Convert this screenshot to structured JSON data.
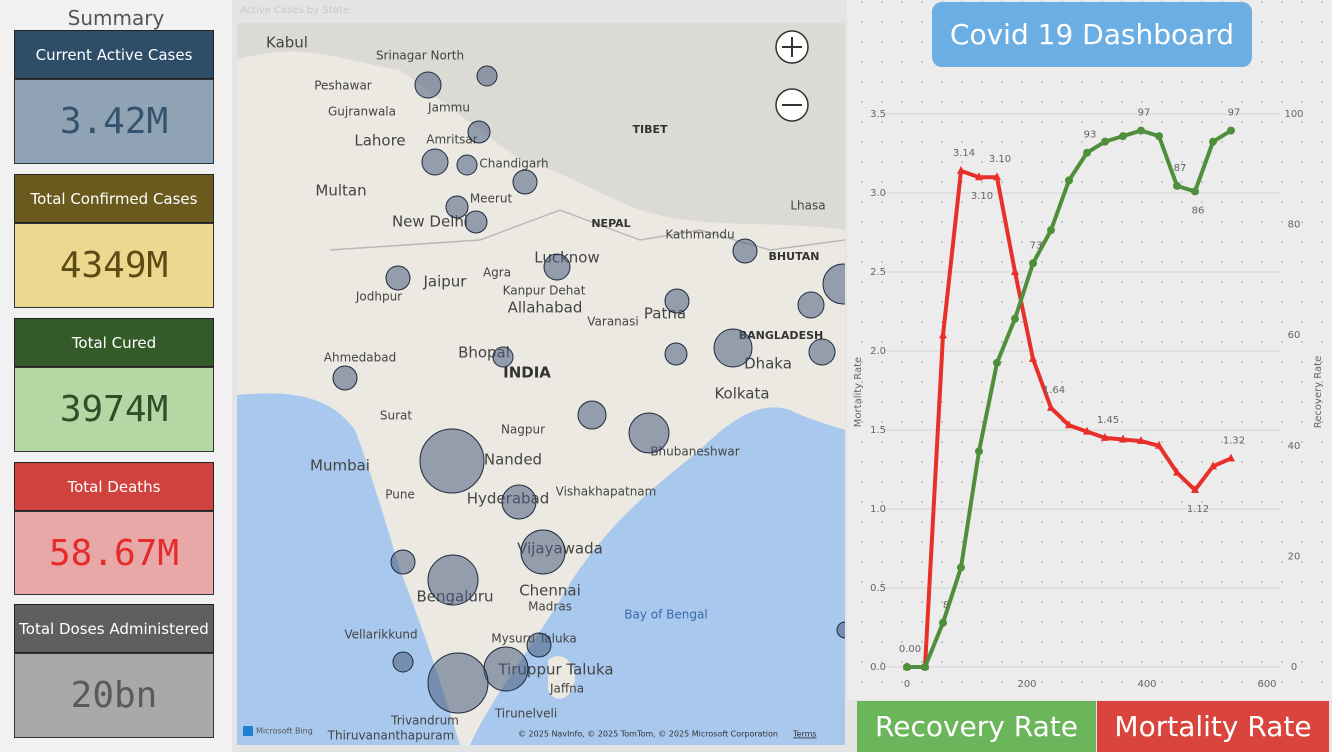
{
  "summary": {
    "title": "Summary",
    "cards": [
      {
        "label": "Current Active Cases",
        "value": "3.42M"
      },
      {
        "label": "Total Confirmed Cases",
        "value": "4349M"
      },
      {
        "label": "Total Cured",
        "value": "3974M"
      },
      {
        "label": "Total Deaths",
        "value": "58.67M"
      },
      {
        "label": "Total Doses Administered",
        "value": "20bn"
      }
    ]
  },
  "map": {
    "title": "Active Cases by State",
    "labels": [
      "Kabul",
      "Srinagar North",
      "Peshawar",
      "Gujranwala",
      "Lahore",
      "Multan",
      "Jammu",
      "Amritsar",
      "Chandigarh",
      "Meerut",
      "New Delhi",
      "Agra",
      "Jaipur",
      "Jodhpur",
      "Lucknow",
      "Kanpur Dehat",
      "Allahabad",
      "Varanasi",
      "Patna",
      "TIBET",
      "NEPAL",
      "Kathmandu",
      "Lhasa",
      "BHUTAN",
      "BANGLADESH",
      "Dhaka",
      "Kolkata",
      "Ahmedabad",
      "Bhopal",
      "INDIA",
      "Surat",
      "Nagpur",
      "Mumbai",
      "Pune",
      "Nanded",
      "Hyderabad",
      "Vishakhapatnam",
      "Bhubaneshwar",
      "Vijayawada",
      "Bengaluru",
      "Chennai",
      "Madras",
      "Bay of Bengal",
      "Vellarikkund",
      "Mysuru Taluka",
      "Tiruppur Taluka",
      "Jaffna",
      "Tirunelveli",
      "Trivandrum",
      "Thiruvananthapuram"
    ],
    "bubbles": [
      169,
      100,
      121,
      169,
      100,
      144,
      121,
      121,
      144,
      169,
      144,
      144,
      169,
      400,
      361,
      169,
      121,
      100,
      144,
      196,
      400,
      1024,
      289,
      484,
      144,
      625,
      144,
      484,
      100,
      900,
      64
    ],
    "logo": "Microsoft Bing",
    "attribution": "© 2025 NavInfo, © 2025 TomTom, © 2025 Microsoft Corporation",
    "terms": "Terms"
  },
  "header": {
    "title": "Covid 19 Dashboard"
  },
  "buttons": [
    "Recovery Rate",
    "Mortality Rate"
  ],
  "chart_data": {
    "type": "line",
    "x": [
      0,
      30,
      60,
      90,
      120,
      150,
      180,
      210,
      240,
      270,
      300,
      330,
      360,
      390,
      420,
      450,
      480,
      510,
      540
    ],
    "xlim": [
      0,
      600
    ],
    "xticks": [
      0,
      200,
      400,
      600
    ],
    "ylim": [
      0,
      3.5
    ],
    "yticks": [
      {
        "value": 0,
        "label": "0.0"
      },
      0.5,
      {
        "value": 1,
        "label": "1.0"
      },
      1.5,
      {
        "value": 2,
        "label": "2.0"
      },
      2.5,
      {
        "value": 3,
        "label": "3.0"
      },
      3.5
    ],
    "y2lim": [
      0,
      100
    ],
    "y2ticks": [
      0,
      20,
      40,
      60,
      80,
      100
    ],
    "ylabel": "Mortality Rate",
    "y2label": "Recovery Rate",
    "grid": true,
    "series": [
      {
        "color": "#e8302a",
        "marker": "triangle",
        "values": [
          0,
          0,
          2.1,
          3.14,
          3.1,
          3.1,
          2.5,
          1.95,
          1.64,
          1.53,
          1.49,
          1.45,
          1.44,
          1.43,
          1.4,
          1.23,
          1.12,
          1.27,
          1.32
        ],
        "value_labels": [
          "0.00",
          null,
          null,
          "3.14",
          "3.10",
          "3.10",
          null,
          null,
          "1.64",
          null,
          null,
          "1.45",
          null,
          null,
          null,
          null,
          "1.12",
          null,
          "1.32"
        ]
      },
      {
        "color": "#4f8f3b",
        "marker": "circle",
        "axis": "y2",
        "values": [
          0,
          0,
          8,
          18,
          39,
          55,
          63,
          73,
          79,
          88,
          93,
          95,
          96,
          97,
          96,
          87,
          86,
          95,
          97
        ],
        "value_labels": [
          null,
          null,
          "8",
          null,
          null,
          null,
          null,
          "73",
          null,
          null,
          "93",
          null,
          null,
          "97",
          null,
          "87",
          "86",
          null,
          "97"
        ]
      }
    ]
  }
}
